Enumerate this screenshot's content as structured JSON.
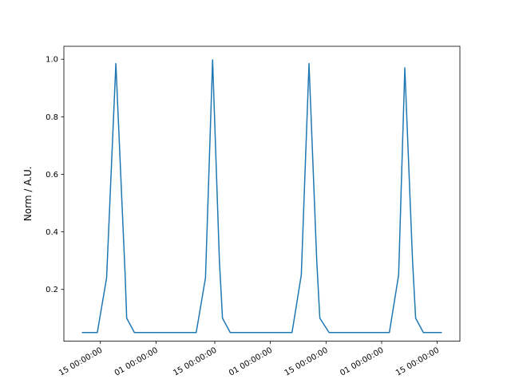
{
  "chart_data": {
    "type": "line",
    "title": "",
    "xlabel": "",
    "ylabel": "Norm / A.U.",
    "ylim": [
      0.02,
      1.045
    ],
    "grid": false,
    "legend": "none",
    "line_color": "#1f77b4",
    "x_ticks": [
      {
        "pos": 0.06,
        "label": "15 00:00:00"
      },
      {
        "pos": 0.24,
        "label": "01 00:00:00"
      },
      {
        "pos": 0.43,
        "label": "15 00:00:00"
      },
      {
        "pos": 0.61,
        "label": "01 00:00:00"
      },
      {
        "pos": 0.79,
        "label": "15 00:00:00"
      },
      {
        "pos": 0.97,
        "label": "01 00:00:00"
      },
      {
        "pos": 1.15,
        "label": "15 00:00:00"
      }
    ],
    "y_ticks": [
      {
        "value": 0.2,
        "label": "0.2"
      },
      {
        "value": 0.4,
        "label": "0.4"
      },
      {
        "value": 0.6,
        "label": "0.6"
      },
      {
        "value": 0.8,
        "label": "0.8"
      },
      {
        "value": 1.0,
        "label": "1.0"
      }
    ],
    "series": [
      {
        "points": [
          [
            0.0,
            0.05
          ],
          [
            0.05,
            0.05
          ],
          [
            0.08,
            0.24
          ],
          [
            0.11,
            0.985
          ],
          [
            0.14,
            0.25
          ],
          [
            0.145,
            0.1
          ],
          [
            0.17,
            0.05
          ],
          [
            0.37,
            0.05
          ],
          [
            0.4,
            0.24
          ],
          [
            0.423,
            0.998
          ],
          [
            0.445,
            0.3
          ],
          [
            0.455,
            0.1
          ],
          [
            0.48,
            0.05
          ],
          [
            0.68,
            0.05
          ],
          [
            0.71,
            0.25
          ],
          [
            0.735,
            0.985
          ],
          [
            0.76,
            0.3
          ],
          [
            0.77,
            0.1
          ],
          [
            0.8,
            0.05
          ],
          [
            0.995,
            0.05
          ],
          [
            1.025,
            0.25
          ],
          [
            1.045,
            0.97
          ],
          [
            1.07,
            0.3
          ],
          [
            1.08,
            0.1
          ],
          [
            1.105,
            0.05
          ],
          [
            1.165,
            0.05
          ]
        ]
      }
    ]
  }
}
